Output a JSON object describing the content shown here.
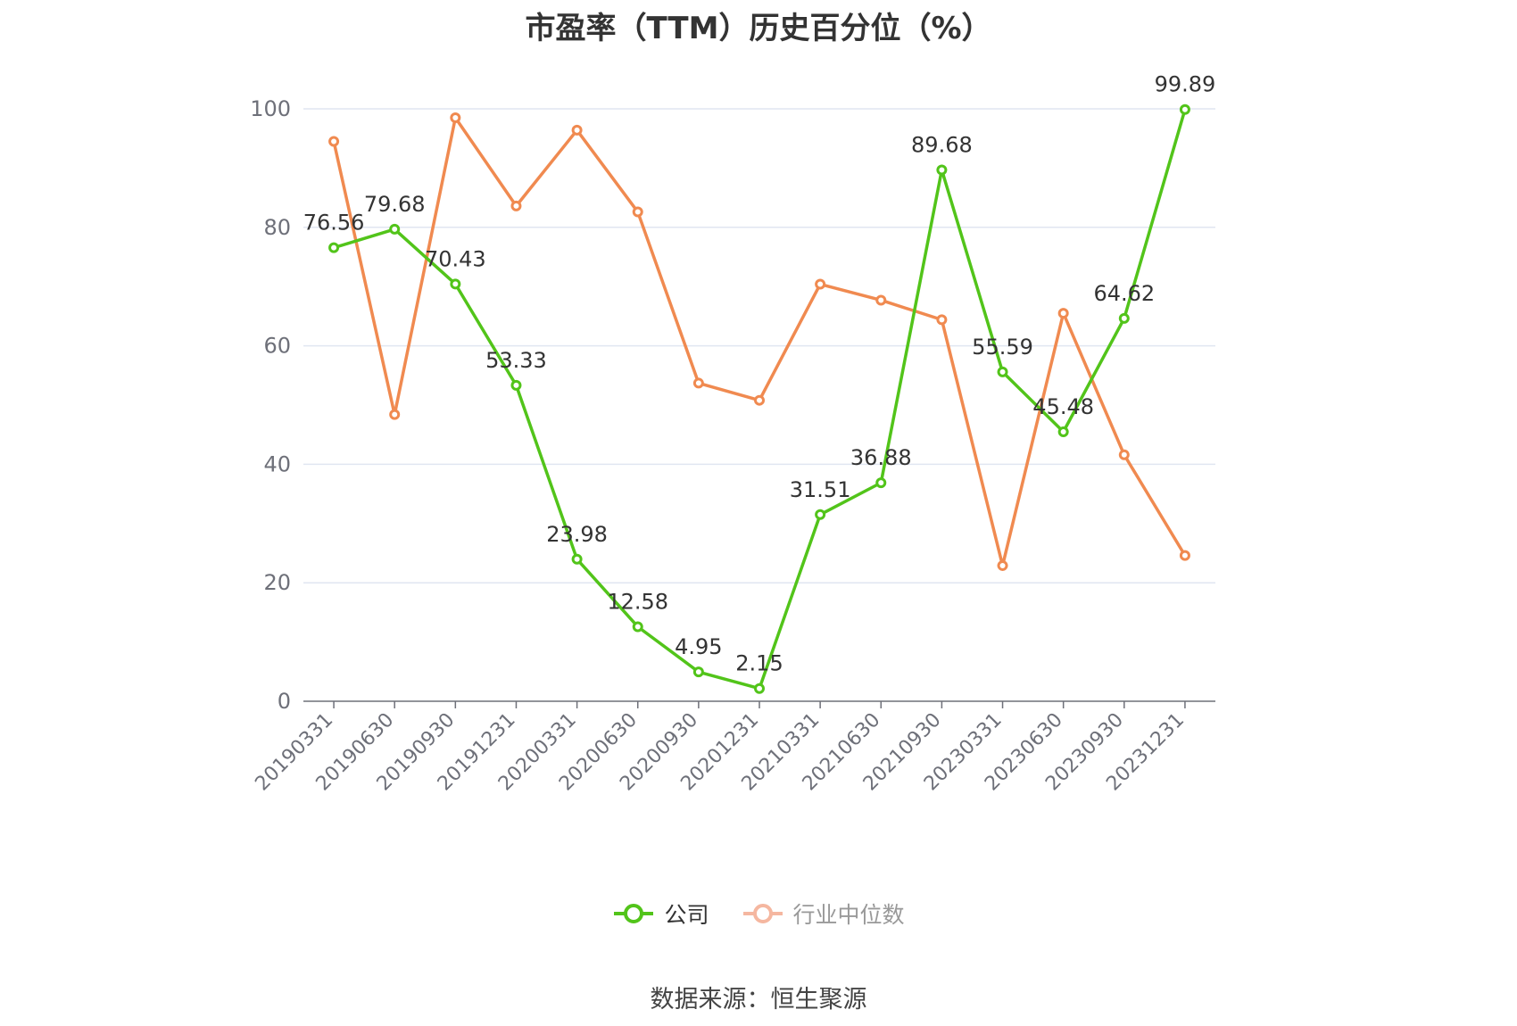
{
  "chart_data": {
    "type": "line",
    "title": "市盈率（TTM）历史百分位（%）",
    "categories": [
      "20190331",
      "20190630",
      "20190930",
      "20191231",
      "20200331",
      "20200630",
      "20200930",
      "20201231",
      "20210331",
      "20210630",
      "20210930",
      "20230331",
      "20230630",
      "20230930",
      "20231231"
    ],
    "ylim": [
      0,
      100
    ],
    "yticks": [
      0,
      20,
      40,
      60,
      80,
      100
    ],
    "grid": true,
    "legend_position": "bottom",
    "series": [
      {
        "name": "公司",
        "color": "#52c41a",
        "values": [
          76.56,
          79.68,
          70.43,
          53.33,
          23.98,
          12.58,
          4.95,
          2.15,
          31.51,
          36.88,
          89.68,
          55.59,
          45.48,
          64.62,
          99.89
        ],
        "labels": [
          "76.56",
          "79.68",
          "70.43",
          "53.33",
          "23.98",
          "12.58",
          "4.95",
          "2.15",
          "31.51",
          "36.88",
          "89.68",
          "55.59",
          "45.48",
          "64.62",
          "99.89"
        ]
      },
      {
        "name": "行业中位数",
        "color": "#f08a50",
        "legend_color": "#f5b7a0",
        "values": [
          94.5,
          48.4,
          98.5,
          83.6,
          96.4,
          82.6,
          53.7,
          50.8,
          70.4,
          67.7,
          64.4,
          22.9,
          65.5,
          41.6,
          24.6
        ]
      }
    ],
    "source": "数据来源：恒生聚源"
  }
}
